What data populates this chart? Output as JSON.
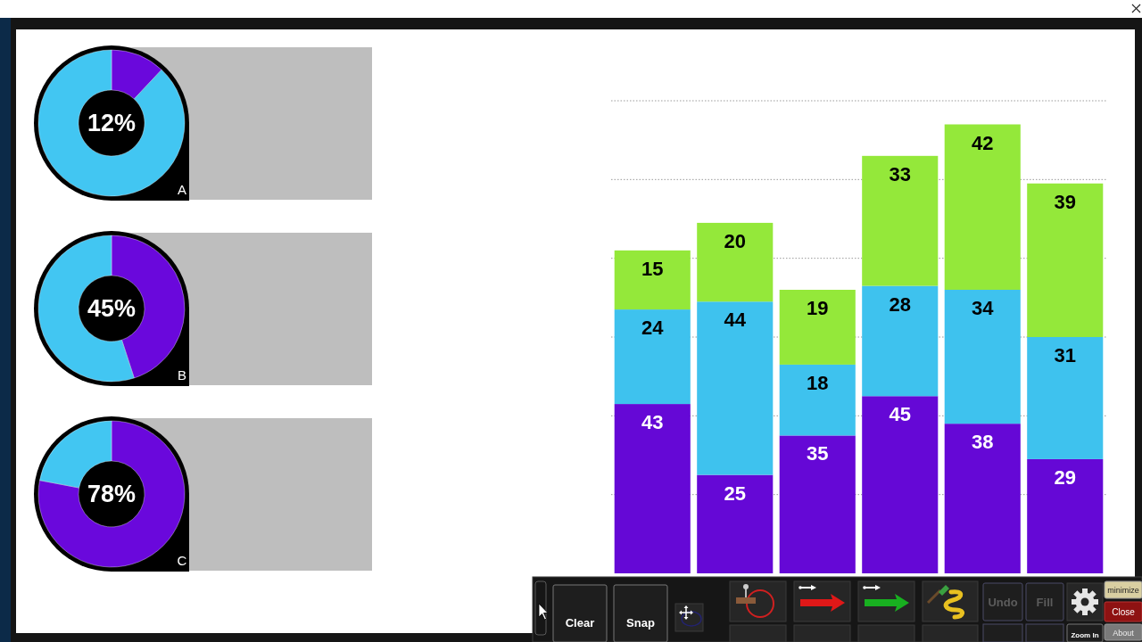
{
  "chart_data": [
    {
      "type": "donut",
      "categories": [
        null,
        null
      ],
      "values": [
        12,
        88
      ],
      "colors": [
        "#6a08dc",
        "#42c6f2"
      ],
      "annotations": [
        "12%",
        "A"
      ]
    },
    {
      "type": "donut",
      "categories": [
        null,
        null
      ],
      "values": [
        45,
        55
      ],
      "colors": [
        "#6a08dc",
        "#42c6f2"
      ],
      "annotations": [
        "45%",
        "B"
      ]
    },
    {
      "type": "donut",
      "categories": [
        null,
        null
      ],
      "values": [
        78,
        22
      ],
      "colors": [
        "#6a08dc",
        "#42c6f2"
      ],
      "annotations": [
        "78%",
        "C"
      ]
    },
    {
      "type": "bar",
      "stacked": true,
      "categories": [
        null,
        null,
        null,
        null,
        null,
        null
      ],
      "series": [
        {
          "color": "#6508d6",
          "values": [
            43,
            25,
            35,
            45,
            38,
            29
          ]
        },
        {
          "color": "#3ec2ee",
          "values": [
            24,
            44,
            18,
            28,
            34,
            31
          ]
        },
        {
          "color": "#94e83a",
          "values": [
            15,
            20,
            19,
            33,
            42,
            39
          ]
        }
      ],
      "ylim": [
        0,
        120
      ],
      "yticks": [
        {
          "value": 20,
          "label": null
        },
        {
          "value": 40,
          "label": null
        },
        {
          "value": 60,
          "label": null
        },
        {
          "value": 80,
          "label": null
        },
        {
          "value": 100,
          "label": null
        },
        {
          "value": 120,
          "label": null
        }
      ],
      "grid": "y",
      "data_labels": true
    },
    {
      "type": "other",
      "annotations": [
        "Clear",
        "Snap",
        "Undo",
        "Fill",
        "minimize",
        "Close",
        "Zoom In",
        "About"
      ]
    }
  ]
}
